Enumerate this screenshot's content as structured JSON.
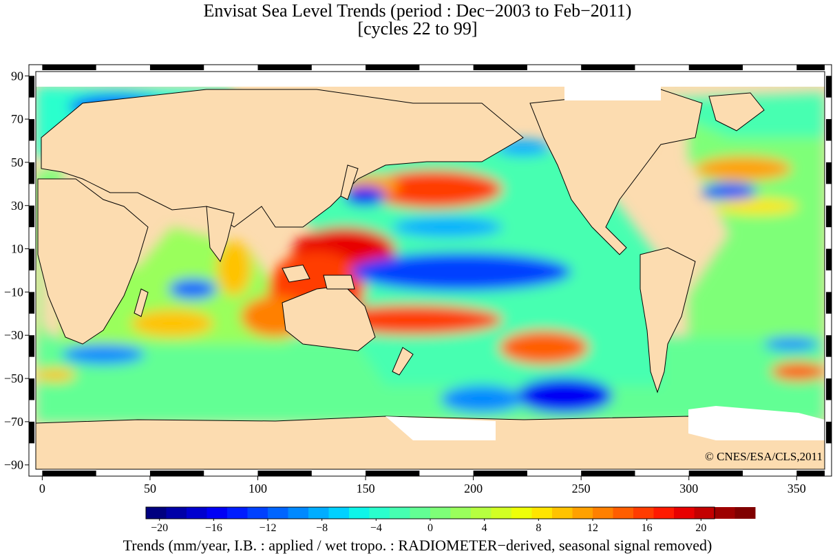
{
  "title": {
    "line1": "Envisat Sea Level Trends (period : Dec−2003 to Feb−2011)",
    "line2": "[cycles 22 to 99]"
  },
  "map": {
    "type": "global sea level trend map",
    "x_ticks": [
      "0",
      "50",
      "100",
      "150",
      "200",
      "250",
      "300",
      "350"
    ],
    "x_values": [
      0,
      50,
      100,
      150,
      200,
      250,
      300,
      350
    ],
    "x_range": [
      -3,
      363
    ],
    "y_ticks": [
      "90",
      "70",
      "50",
      "30",
      "10",
      "−10",
      "−30",
      "−50",
      "−70",
      "−90"
    ],
    "y_values": [
      90,
      70,
      50,
      30,
      10,
      -10,
      -30,
      -50,
      -70,
      -90
    ],
    "y_range": [
      -92,
      92
    ],
    "land_color": "#fcdcb0",
    "ice_color": "#ffffff",
    "copyright": "© CNES/ESA/CLS,2011"
  },
  "colorbar": {
    "range": [
      -21,
      21
    ],
    "step": 1.5,
    "tick_labels": [
      "−20",
      "−16",
      "−12",
      "−8",
      "−4",
      "0",
      "4",
      "8",
      "12",
      "16",
      "20"
    ],
    "tick_values": [
      -20,
      -16,
      -12,
      -8,
      -4,
      0,
      4,
      8,
      12,
      16,
      20
    ],
    "colors": [
      "#000080",
      "#0000a8",
      "#0000cf",
      "#0000f5",
      "#001dff",
      "#0041ff",
      "#0065ff",
      "#0089ff",
      "#00adff",
      "#00d1ff",
      "#0ef5e9",
      "#2affcd",
      "#46ffb1",
      "#62ff94",
      "#7eff78",
      "#9aff5c",
      "#b6ff40",
      "#d2ff24",
      "#eeff08",
      "#ffe500",
      "#ffc300",
      "#ffa100",
      "#ff8000",
      "#ff5e00",
      "#ff3c00",
      "#ff1a00",
      "#e80000",
      "#c30000",
      "#9e0000",
      "#800000"
    ],
    "caption": "Trends (mm/year, I.B. : applied / wet tropo. : RADIOMETER−derived, seasonal signal removed)"
  }
}
